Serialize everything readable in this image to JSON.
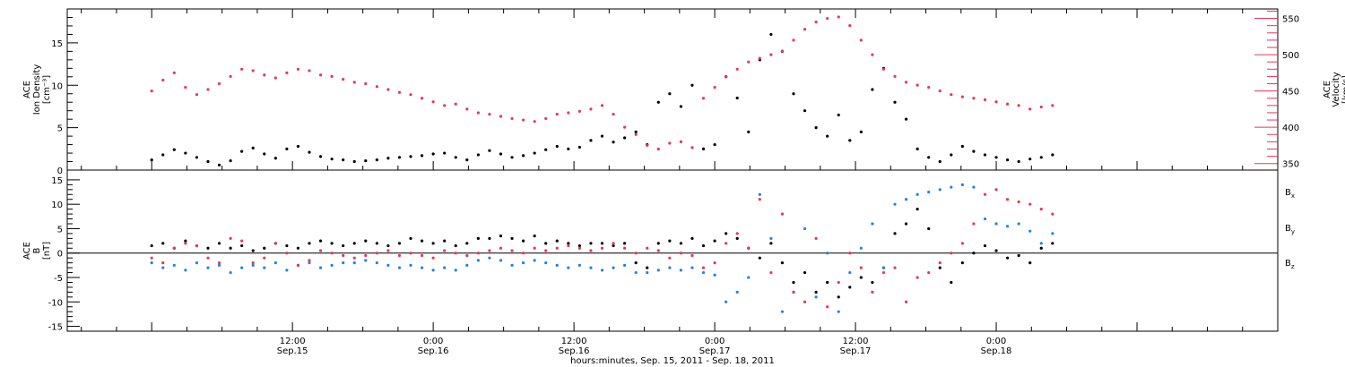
{
  "chart_data": [
    {
      "type": "scatter",
      "panel": "plasma",
      "ylabel_left": [
        "ACE",
        "Ion Density",
        "[cm⁻³]"
      ],
      "ylabel_right": [
        "ACE",
        "Velocity",
        "[km/s]"
      ],
      "left_ylim": [
        0,
        19
      ],
      "left_yticks": [
        0,
        5,
        10,
        15
      ],
      "right_ylim": [
        341,
        563
      ],
      "right_yticks": [
        350,
        400,
        450,
        500,
        550
      ],
      "colors": {
        "density": "#000000",
        "velocity": "#e8365d"
      },
      "series": [
        {
          "name": "Ion Density",
          "axis": "left",
          "x": [
            0.0,
            0.04,
            0.08,
            0.12,
            0.16,
            0.2,
            0.24,
            0.28,
            0.32,
            0.36,
            0.4,
            0.44,
            0.48,
            0.52,
            0.56,
            0.6,
            0.64,
            0.68,
            0.72,
            0.76,
            0.8,
            0.84,
            0.88,
            0.92,
            0.96,
            1.0,
            1.04,
            1.08,
            1.12,
            1.16,
            1.2,
            1.24,
            1.28,
            1.32,
            1.36,
            1.4,
            1.44,
            1.48,
            1.52,
            1.56,
            1.6,
            1.64,
            1.68,
            1.72,
            1.76,
            1.8,
            1.84,
            1.88,
            1.92,
            1.96,
            2.0,
            2.04,
            2.08,
            2.12,
            2.16,
            2.2,
            2.24,
            2.28,
            2.32,
            2.36,
            2.4,
            2.44,
            2.48,
            2.52,
            2.56,
            2.6,
            2.64,
            2.68,
            2.72,
            2.76,
            2.8,
            2.84,
            2.88,
            2.92,
            2.96,
            3.0,
            3.04,
            3.08,
            3.12,
            3.16,
            3.2
          ],
          "y": [
            1.2,
            1.8,
            2.4,
            2.0,
            1.5,
            1.0,
            0.6,
            1.1,
            2.2,
            2.6,
            1.9,
            1.4,
            2.5,
            2.8,
            2.1,
            1.6,
            1.3,
            1.2,
            1.0,
            1.1,
            1.2,
            1.4,
            1.5,
            1.6,
            1.7,
            1.9,
            2.0,
            1.5,
            1.2,
            1.8,
            2.3,
            1.9,
            1.5,
            1.7,
            2.0,
            2.4,
            2.8,
            2.5,
            2.7,
            3.5,
            4.0,
            3.3,
            3.8,
            4.5,
            3.0,
            8.0,
            9.0,
            7.5,
            10.0,
            2.5,
            3.0,
            11.0,
            8.5,
            4.5,
            13.0,
            16.0,
            14.0,
            9.0,
            7.0,
            5.0,
            4.0,
            6.5,
            3.5,
            4.5,
            9.5,
            12.0,
            8.0,
            6.0,
            2.5,
            1.5,
            1.0,
            1.8,
            2.8,
            2.2,
            1.8,
            1.5,
            1.2,
            1.0,
            1.3,
            1.5,
            1.8
          ]
        },
        {
          "name": "Velocity",
          "axis": "right",
          "x": [
            0.0,
            0.04,
            0.08,
            0.12,
            0.16,
            0.2,
            0.24,
            0.28,
            0.32,
            0.36,
            0.4,
            0.44,
            0.48,
            0.52,
            0.56,
            0.6,
            0.64,
            0.68,
            0.72,
            0.76,
            0.8,
            0.84,
            0.88,
            0.92,
            0.96,
            1.0,
            1.04,
            1.08,
            1.12,
            1.16,
            1.2,
            1.24,
            1.28,
            1.32,
            1.36,
            1.4,
            1.44,
            1.48,
            1.52,
            1.56,
            1.6,
            1.64,
            1.68,
            1.72,
            1.76,
            1.8,
            1.84,
            1.88,
            1.92,
            1.96,
            2.0,
            2.04,
            2.08,
            2.12,
            2.16,
            2.2,
            2.24,
            2.28,
            2.32,
            2.36,
            2.4,
            2.44,
            2.48,
            2.52,
            2.56,
            2.6,
            2.64,
            2.68,
            2.72,
            2.76,
            2.8,
            2.84,
            2.88,
            2.92,
            2.96,
            3.0,
            3.04,
            3.08,
            3.12,
            3.16,
            3.2
          ],
          "y": [
            450,
            465,
            475,
            455,
            445,
            452,
            460,
            470,
            480,
            478,
            472,
            468,
            475,
            480,
            478,
            472,
            470,
            466,
            462,
            460,
            456,
            452,
            448,
            445,
            440,
            435,
            430,
            432,
            425,
            420,
            418,
            415,
            412,
            410,
            408,
            412,
            418,
            420,
            422,
            425,
            430,
            418,
            400,
            390,
            375,
            370,
            378,
            380,
            372,
            440,
            455,
            470,
            480,
            490,
            495,
            500,
            505,
            520,
            535,
            545,
            550,
            552,
            540,
            520,
            500,
            480,
            470,
            462,
            458,
            455,
            450,
            445,
            442,
            440,
            438,
            435,
            432,
            430,
            425,
            428,
            430
          ]
        }
      ]
    },
    {
      "type": "scatter",
      "panel": "magnetic-field",
      "ylabel_left": [
        "ACE",
        "B",
        "[nT]"
      ],
      "ylim": [
        -16,
        17
      ],
      "yticks": [
        -15,
        -10,
        -5,
        0,
        5,
        10,
        15
      ],
      "zero_line": true,
      "colors": {
        "Bx": "#000000",
        "By": "#1f83e0",
        "Bz": "#e8365d"
      },
      "series": [
        {
          "name": "Bx",
          "label": "B",
          "sub": "x",
          "x": [
            0.0,
            0.04,
            0.08,
            0.12,
            0.16,
            0.2,
            0.24,
            0.28,
            0.32,
            0.36,
            0.4,
            0.44,
            0.48,
            0.52,
            0.56,
            0.6,
            0.64,
            0.68,
            0.72,
            0.76,
            0.8,
            0.84,
            0.88,
            0.92,
            0.96,
            1.0,
            1.04,
            1.08,
            1.12,
            1.16,
            1.2,
            1.24,
            1.28,
            1.32,
            1.36,
            1.4,
            1.44,
            1.48,
            1.52,
            1.56,
            1.6,
            1.64,
            1.68,
            1.72,
            1.76,
            1.8,
            1.84,
            1.88,
            1.92,
            1.96,
            2.0,
            2.04,
            2.08,
            2.12,
            2.16,
            2.2,
            2.24,
            2.28,
            2.32,
            2.36,
            2.4,
            2.44,
            2.48,
            2.52,
            2.56,
            2.6,
            2.64,
            2.68,
            2.72,
            2.76,
            2.8,
            2.84,
            2.88,
            2.92,
            2.96,
            3.0,
            3.04,
            3.08,
            3.12,
            3.16,
            3.2
          ],
          "y": [
            1.5,
            2.0,
            1.0,
            2.5,
            1.5,
            1.0,
            2.0,
            1.0,
            1.5,
            0.5,
            1.0,
            2.0,
            1.5,
            1.0,
            2.0,
            2.5,
            2.0,
            1.5,
            2.0,
            2.5,
            2.0,
            1.5,
            2.0,
            3.0,
            2.5,
            2.0,
            2.5,
            1.5,
            2.0,
            3.0,
            3.0,
            3.5,
            3.0,
            2.5,
            3.5,
            2.0,
            2.5,
            2.0,
            1.5,
            2.0,
            2.0,
            1.5,
            2.0,
            -2.0,
            -3.0,
            2.0,
            2.5,
            2.0,
            3.0,
            1.5,
            2.5,
            4.0,
            3.0,
            1.0,
            -1.0,
            2.0,
            -2.0,
            -6.0,
            -4.0,
            -8.0,
            -6.0,
            -9.0,
            -7.0,
            -5.0,
            -6.0,
            -3.0,
            4.0,
            6.0,
            9.0,
            5.0,
            -3.0,
            -6.0,
            -2.0,
            0.0,
            1.5,
            0.5,
            -1.0,
            -0.5,
            -2.0,
            1.0,
            2.0
          ]
        },
        {
          "name": "By",
          "label": "B",
          "sub": "y",
          "x": [
            0.0,
            0.04,
            0.08,
            0.12,
            0.16,
            0.2,
            0.24,
            0.28,
            0.32,
            0.36,
            0.4,
            0.44,
            0.48,
            0.52,
            0.56,
            0.6,
            0.64,
            0.68,
            0.72,
            0.76,
            0.8,
            0.84,
            0.88,
            0.92,
            0.96,
            1.0,
            1.04,
            1.08,
            1.12,
            1.16,
            1.2,
            1.24,
            1.28,
            1.32,
            1.36,
            1.4,
            1.44,
            1.48,
            1.52,
            1.56,
            1.6,
            1.64,
            1.68,
            1.72,
            1.76,
            1.8,
            1.84,
            1.88,
            1.92,
            1.96,
            2.0,
            2.04,
            2.08,
            2.12,
            2.16,
            2.2,
            2.24,
            2.28,
            2.32,
            2.36,
            2.4,
            2.44,
            2.48,
            2.52,
            2.56,
            2.6,
            2.64,
            2.68,
            2.72,
            2.76,
            2.8,
            2.84,
            2.88,
            2.92,
            2.96,
            3.0,
            3.04,
            3.08,
            3.12,
            3.16,
            3.2
          ],
          "y": [
            -2.0,
            -3.0,
            -2.5,
            -3.5,
            -2.0,
            -3.0,
            -2.5,
            -4.0,
            -3.0,
            -2.5,
            -3.0,
            -2.0,
            -3.5,
            -2.5,
            -2.0,
            -3.0,
            -2.5,
            -2.0,
            -2.0,
            -1.5,
            -2.0,
            -2.5,
            -3.0,
            -2.5,
            -3.0,
            -3.5,
            -3.0,
            -3.5,
            -2.5,
            -1.5,
            -1.0,
            -1.5,
            -2.5,
            -2.0,
            -1.5,
            -2.0,
            -2.5,
            -3.0,
            -2.5,
            -3.0,
            -3.5,
            -3.0,
            -2.5,
            -4.0,
            -4.0,
            -3.5,
            -3.0,
            -3.5,
            -3.0,
            -4.0,
            -4.5,
            -10.0,
            -8.0,
            -5.0,
            12.0,
            3.0,
            -12.0,
            -8.0,
            5.0,
            -9.0,
            0.0,
            -12.0,
            -4.0,
            1.0,
            6.0,
            -3.0,
            10.0,
            11.0,
            12.0,
            12.5,
            13.0,
            13.5,
            14.0,
            13.5,
            7.0,
            6.0,
            5.5,
            6.0,
            4.5,
            2.0,
            4.0
          ]
        },
        {
          "name": "Bz",
          "label": "B",
          "sub": "z",
          "x": [
            0.0,
            0.04,
            0.08,
            0.12,
            0.16,
            0.2,
            0.24,
            0.28,
            0.32,
            0.36,
            0.4,
            0.44,
            0.48,
            0.52,
            0.56,
            0.6,
            0.64,
            0.68,
            0.72,
            0.76,
            0.8,
            0.84,
            0.88,
            0.92,
            0.96,
            1.0,
            1.04,
            1.08,
            1.12,
            1.16,
            1.2,
            1.24,
            1.28,
            1.32,
            1.36,
            1.4,
            1.44,
            1.48,
            1.52,
            1.56,
            1.6,
            1.64,
            1.68,
            1.72,
            1.76,
            1.8,
            1.84,
            1.88,
            1.92,
            1.96,
            2.0,
            2.04,
            2.08,
            2.12,
            2.16,
            2.2,
            2.24,
            2.28,
            2.32,
            2.36,
            2.4,
            2.44,
            2.48,
            2.52,
            2.56,
            2.6,
            2.64,
            2.68,
            2.72,
            2.76,
            2.8,
            2.84,
            2.88,
            2.92,
            2.96,
            3.0,
            3.04,
            3.08,
            3.12,
            3.16,
            3.2
          ],
          "y": [
            -1.0,
            -2.0,
            1.0,
            2.0,
            1.5,
            -1.0,
            -2.0,
            3.0,
            2.5,
            -2.0,
            -1.0,
            2.0,
            0.0,
            -2.5,
            -1.5,
            0.5,
            0.0,
            -0.5,
            -1.0,
            -0.5,
            0.0,
            0.5,
            -0.5,
            0.0,
            -0.5,
            -1.0,
            0.5,
            0.0,
            -0.5,
            0.0,
            0.5,
            1.0,
            0.5,
            0.0,
            1.0,
            0.5,
            1.0,
            1.5,
            1.0,
            0.5,
            1.0,
            2.0,
            1.0,
            0.0,
            1.0,
            0.5,
            -1.0,
            0.0,
            -0.5,
            -3.0,
            -2.0,
            2.0,
            4.0,
            1.0,
            11.0,
            -4.0,
            8.0,
            -8.0,
            -10.0,
            3.0,
            -11.0,
            -6.0,
            0.0,
            -3.0,
            -8.0,
            -4.0,
            -3.0,
            -10.0,
            -5.0,
            -4.0,
            -2.0,
            0.0,
            2.0,
            6.0,
            12.0,
            13.0,
            11.0,
            10.5,
            10.0,
            9.0,
            8.0
          ]
        }
      ]
    }
  ],
  "x_axis": {
    "xlim": [
      -0.3,
      4.0
    ],
    "ticks": [
      {
        "x": 0.5,
        "time": "12:00",
        "date": "Sep.15"
      },
      {
        "x": 1.0,
        "time": "0:00",
        "date": "Sep.16"
      },
      {
        "x": 1.5,
        "time": "12:00",
        "date": "Sep.16"
      },
      {
        "x": 2.0,
        "time": "0:00",
        "date": "Sep.17"
      },
      {
        "x": 2.5,
        "time": "12:00",
        "date": "Sep.17"
      },
      {
        "x": 3.0,
        "time": "0:00",
        "date": "Sep.18"
      }
    ],
    "minor_step": 0.125,
    "xlabel": "hours:minutes, Sep. 15, 2011 - Sep. 18, 2011"
  }
}
